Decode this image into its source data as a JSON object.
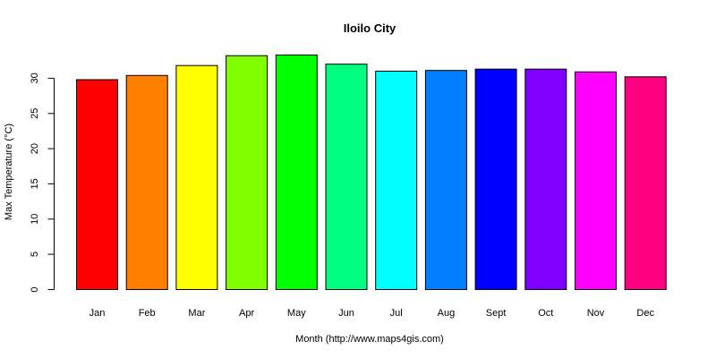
{
  "chart_data": {
    "type": "bar",
    "title": "Iloilo City",
    "xlabel": "Month (http://www.maps4gis.com)",
    "ylabel": "Max Temperature (°C)",
    "categories": [
      "Jan",
      "Feb",
      "Mar",
      "Apr",
      "May",
      "Jun",
      "Jul",
      "Aug",
      "Sept",
      "Oct",
      "Nov",
      "Dec"
    ],
    "values": [
      29.8,
      30.4,
      31.8,
      33.2,
      33.3,
      32.0,
      31.0,
      31.1,
      31.3,
      31.3,
      30.9,
      30.2
    ],
    "colors": [
      "#FF0000",
      "#FF8000",
      "#FFFF00",
      "#80FF00",
      "#00FF00",
      "#00FF80",
      "#00FFFF",
      "#0080FF",
      "#0000FF",
      "#8000FF",
      "#FF00FF",
      "#FF0080"
    ],
    "yticks": [
      "0",
      "5",
      "10",
      "15",
      "20",
      "25",
      "30"
    ],
    "ylim": [
      0,
      34
    ],
    "grid": false,
    "legend": "none"
  }
}
